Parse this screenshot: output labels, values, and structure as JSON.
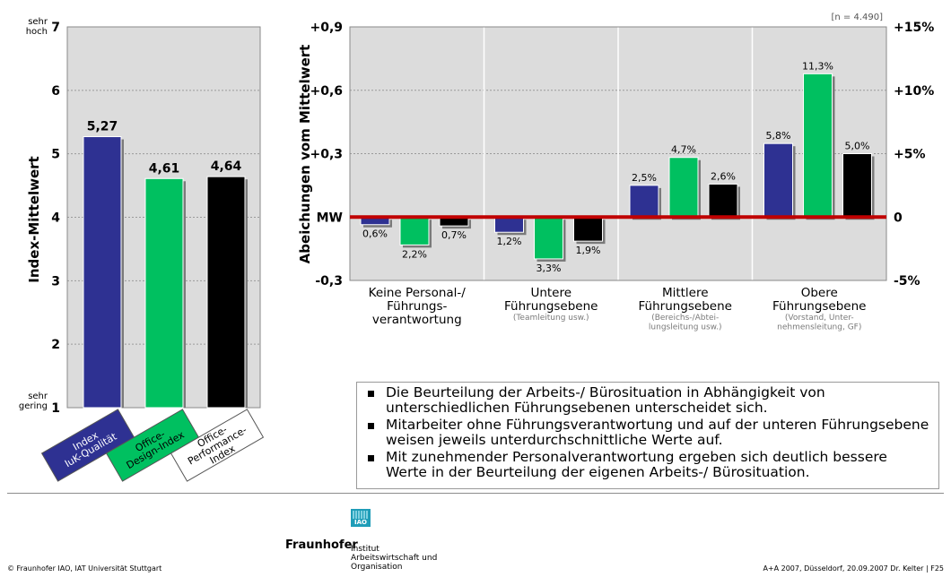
{
  "chart_data": [
    {
      "type": "bar",
      "ylabel": "Index-Mittelwert",
      "ylim": [
        1,
        7
      ],
      "yticks": [
        "1",
        "2",
        "3",
        "4",
        "5",
        "6",
        "7"
      ],
      "y_top_label": [
        "sehr",
        "hoch"
      ],
      "y_bottom_label": [
        "sehr",
        "gering"
      ],
      "grid": true,
      "categories": [
        {
          "lines": [
            "Index",
            "IuK-Qualität"
          ],
          "color": "#2e3192",
          "text_color": "#ffffff"
        },
        {
          "lines": [
            "Office-",
            "Design-Index"
          ],
          "color": "#00c060",
          "text_color": "#000000"
        },
        {
          "lines": [
            "Office-",
            "Performance-",
            "Index"
          ],
          "color": "#ffffff",
          "text_color": "#000000"
        }
      ],
      "values": [
        5.27,
        4.61,
        4.64
      ],
      "value_labels": [
        "5,27",
        "4,61",
        "4,64"
      ],
      "colors": [
        "#2e3192",
        "#00c060",
        "#000000"
      ]
    },
    {
      "type": "bar",
      "ylabel": "Abeichungen vom Mittelwert",
      "ylim": [
        -0.3,
        0.9
      ],
      "left_ticks": [
        "+0,9",
        "+0,6",
        "+0,3",
        "MW",
        "-0,3"
      ],
      "right_ticks": [
        "+15%",
        "+10%",
        "+5%",
        "0",
        "-5%"
      ],
      "note": "[n = 4.490]",
      "grid": true,
      "groups": [
        {
          "title": [
            "Keine Personal-/",
            "Führungs-",
            "verantwortung"
          ],
          "sub": []
        },
        {
          "title": [
            "Untere",
            "Führungsebene"
          ],
          "sub": [
            "(Teamleitung usw.)"
          ]
        },
        {
          "title": [
            "Mittlere",
            "Führungsebene"
          ],
          "sub": [
            "(Bereichs-/Abtei-",
            "lungsleitung usw.)"
          ]
        },
        {
          "title": [
            "Obere",
            "Führungsebene"
          ],
          "sub": [
            "(Vorstand, Unter-",
            "nehmensleitung, GF)"
          ]
        }
      ],
      "series": [
        {
          "name": "Index IuK-Qualität",
          "color": "#2e3192",
          "values": [
            -0.6,
            -1.2,
            2.5,
            5.8
          ],
          "labels": [
            "0,6%",
            "1,2%",
            "2,5%",
            "5,8%"
          ]
        },
        {
          "name": "Office-Design-Index",
          "color": "#00c060",
          "values": [
            -2.2,
            -3.3,
            4.7,
            11.3
          ],
          "labels": [
            "2,2%",
            "3,3%",
            "4,7%",
            "11,3%"
          ]
        },
        {
          "name": "Office-Performance-Index",
          "color": "#000000",
          "values": [
            -0.7,
            -1.9,
            2.6,
            5.0
          ],
          "labels": [
            "0,7%",
            "1,9%",
            "2,6%",
            "5,0%"
          ]
        }
      ]
    }
  ],
  "bullets": [
    "Die Beurteilung der Arbeits-/ Bürosituation in Abhängigkeit von unterschiedlichen Führungsebenen unterscheidet sich.",
    "Mitarbeiter ohne Führungsverantwortung und auf der unteren Führungsebene weisen jeweils unterdurchschnittliche Werte auf.",
    "Mit zunehmender Personalverantwortung ergeben sich deutlich bessere Werte in der Beurteilung der eigenen Arbeits-/ Bürosituation."
  ],
  "footer": {
    "left": "© Fraunhofer IAO, IAT Universität Stuttgart",
    "right": "A+A 2007, Düsseldorf, 20.09.2007  Dr. Kelter   |   F25",
    "logo_word": "Fraunhofer",
    "logo_box": "IAO",
    "institute": [
      "Institut",
      "Arbeitswirtschaft und",
      "Organisation"
    ]
  }
}
